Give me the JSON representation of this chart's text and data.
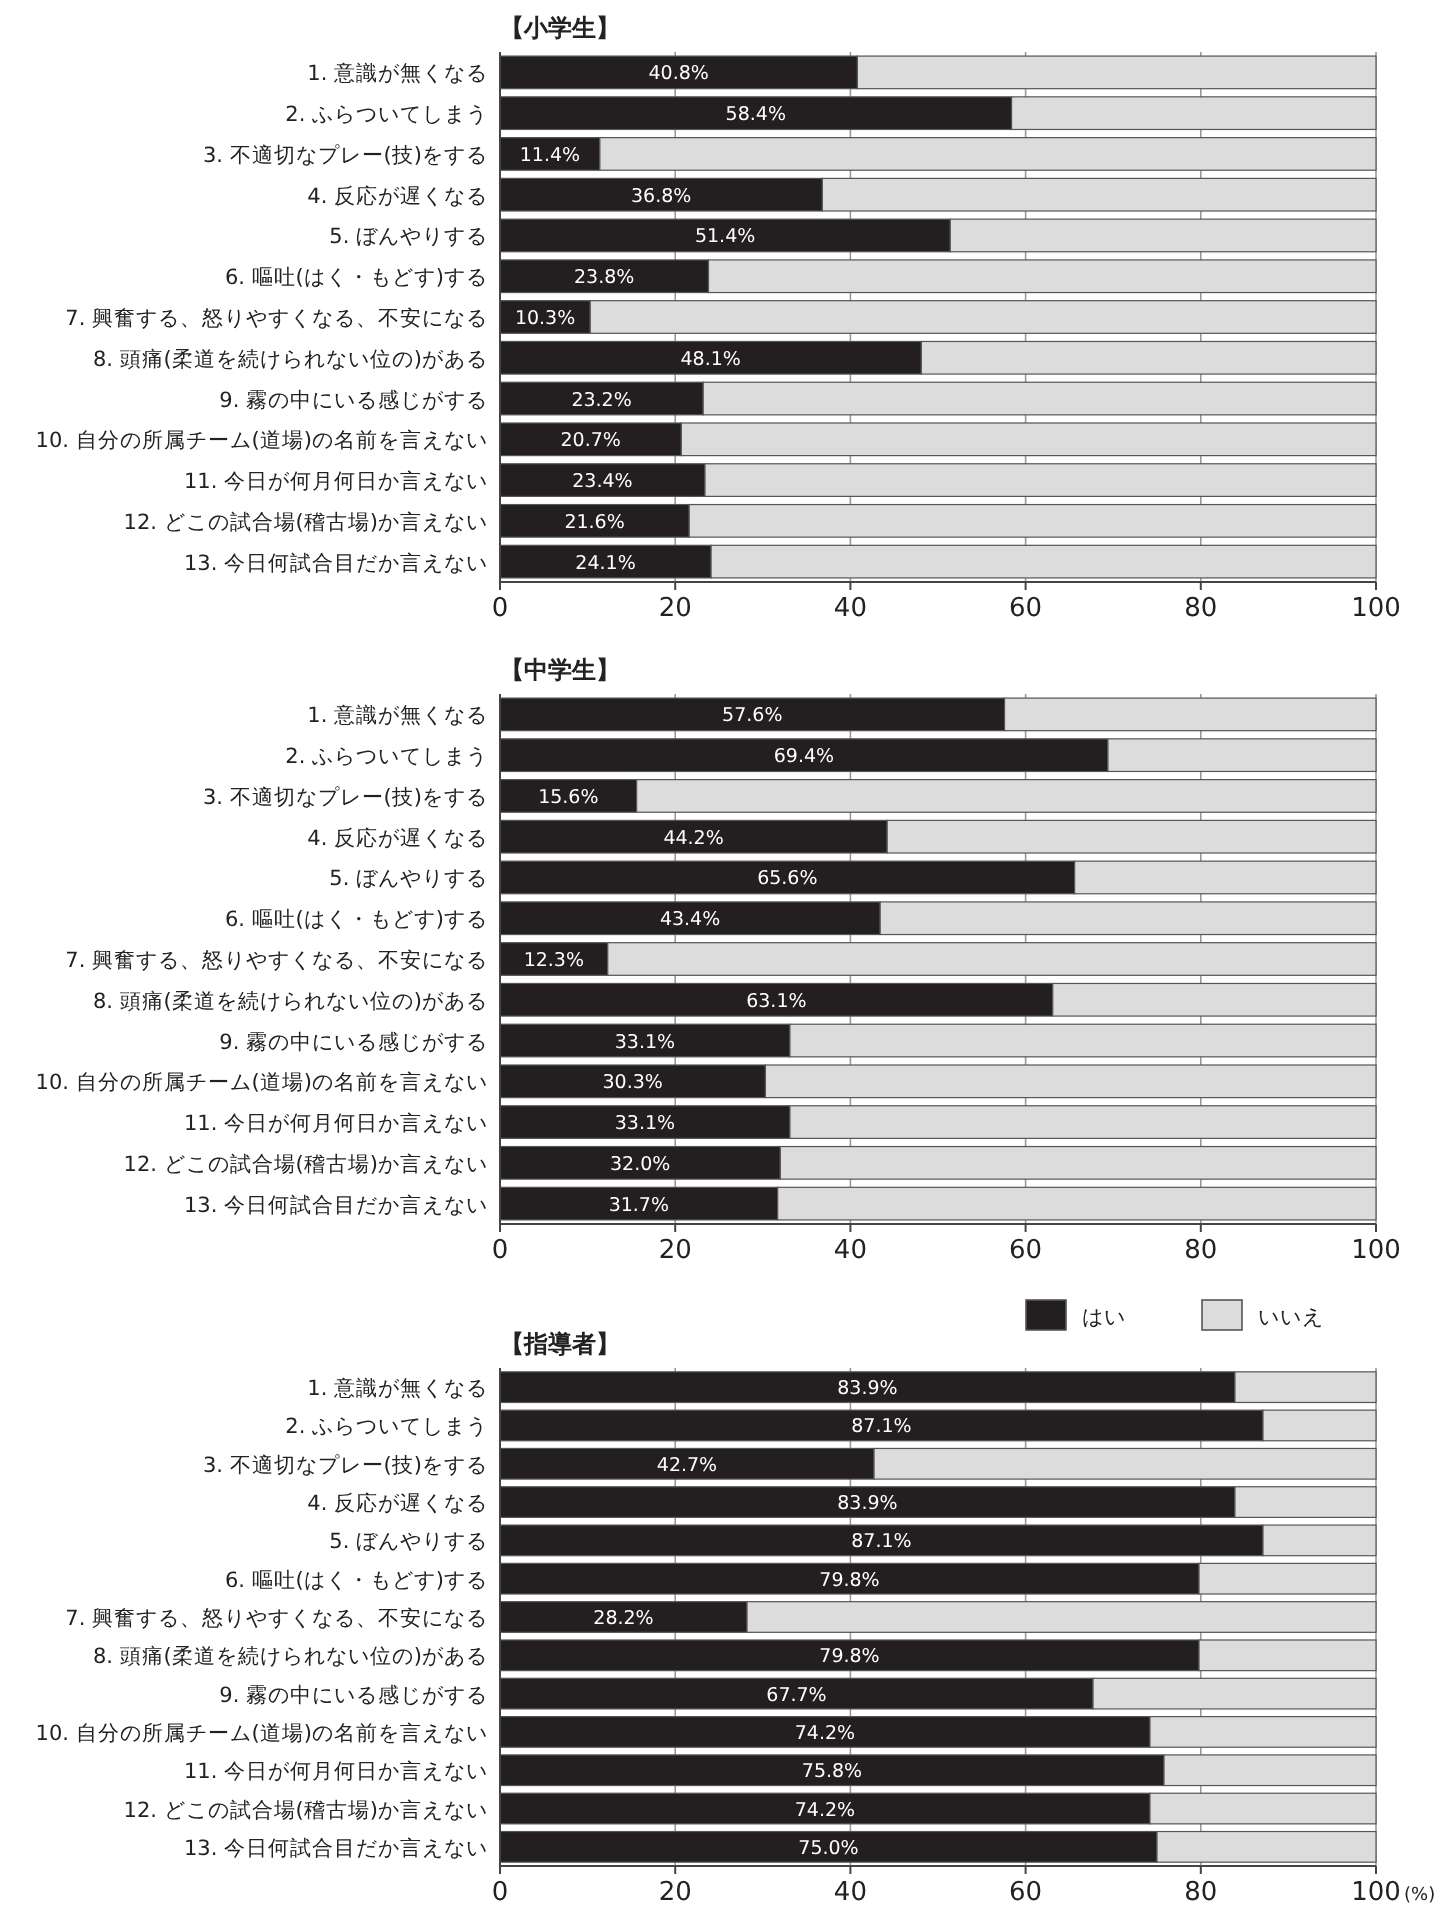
{
  "chart_data": [
    {
      "type": "bar",
      "orientation": "horizontal",
      "stacked": true,
      "title": "【小学生】",
      "categories": [
        "1. 意識が無くなる",
        "2. ふらついてしまう",
        "3. 不適切なプレー(技)をする",
        "4. 反応が遅くなる",
        "5. ぼんやりする",
        "6. 嘔吐(はく・もどす)する",
        "7. 興奮する、怒りやすくなる、不安になる",
        "8. 頭痛(柔道を続けられない位の)がある",
        "9. 霧の中にいる感じがする",
        "10. 自分の所属チーム(道場)の名前を言えない",
        "11. 今日が何月何日か言えない",
        "12. どこの試合場(稽古場)か言えない",
        "13. 今日何試合目だか言えない"
      ],
      "series": [
        {
          "color": "#231f20",
          "values": [
            40.8,
            58.4,
            11.4,
            36.8,
            51.4,
            23.8,
            10.3,
            48.1,
            23.2,
            20.7,
            23.4,
            21.6,
            24.1
          ],
          "value_labels": [
            "40.8%",
            "58.4%",
            "11.4%",
            "36.8%",
            "51.4%",
            "23.8%",
            "10.3%",
            "48.1%",
            "23.2%",
            "20.7%",
            "23.4%",
            "21.6%",
            "24.1%"
          ]
        },
        {
          "color": "#dcdcdc",
          "values": [
            59.2,
            41.6,
            88.6,
            63.2,
            48.6,
            76.2,
            89.7,
            51.9,
            76.8,
            79.3,
            76.6,
            78.4,
            75.9
          ]
        }
      ],
      "xlim": [
        0,
        100
      ],
      "xticks": [
        0,
        20,
        40,
        60,
        80,
        100
      ],
      "grid": "x"
    },
    {
      "type": "bar",
      "orientation": "horizontal",
      "stacked": true,
      "title": "【中学生】",
      "categories": [
        "1. 意識が無くなる",
        "2. ふらついてしまう",
        "3. 不適切なプレー(技)をする",
        "4. 反応が遅くなる",
        "5. ぼんやりする",
        "6. 嘔吐(はく・もどす)する",
        "7. 興奮する、怒りやすくなる、不安になる",
        "8. 頭痛(柔道を続けられない位の)がある",
        "9. 霧の中にいる感じがする",
        "10. 自分の所属チーム(道場)の名前を言えない",
        "11. 今日が何月何日か言えない",
        "12. どこの試合場(稽古場)か言えない",
        "13. 今日何試合目だか言えない"
      ],
      "series": [
        {
          "color": "#231f20",
          "values": [
            57.6,
            69.4,
            15.6,
            44.2,
            65.6,
            43.4,
            12.3,
            63.1,
            33.1,
            30.3,
            33.1,
            32.0,
            31.7
          ],
          "value_labels": [
            "57.6%",
            "69.4%",
            "15.6%",
            "44.2%",
            "65.6%",
            "43.4%",
            "12.3%",
            "63.1%",
            "33.1%",
            "30.3%",
            "33.1%",
            "32.0%",
            "31.7%"
          ]
        },
        {
          "color": "#dcdcdc",
          "values": [
            42.4,
            30.6,
            84.4,
            55.8,
            34.4,
            56.6,
            87.7,
            36.9,
            66.9,
            69.7,
            66.9,
            68.0,
            68.3
          ]
        }
      ],
      "xlim": [
        0,
        100
      ],
      "xticks": [
        0,
        20,
        40,
        60,
        80,
        100
      ],
      "grid": "x"
    },
    {
      "type": "bar",
      "orientation": "horizontal",
      "stacked": true,
      "title": "【指導者】",
      "xlabel": "(%)",
      "categories": [
        "1. 意識が無くなる",
        "2. ふらついてしまう",
        "3. 不適切なプレー(技)をする",
        "4. 反応が遅くなる",
        "5. ぼんやりする",
        "6. 嘔吐(はく・もどす)する",
        "7. 興奮する、怒りやすくなる、不安になる",
        "8. 頭痛(柔道を続けられない位の)がある",
        "9. 霧の中にいる感じがする",
        "10. 自分の所属チーム(道場)の名前を言えない",
        "11. 今日が何月何日か言えない",
        "12. どこの試合場(稽古場)か言えない",
        "13. 今日何試合目だか言えない"
      ],
      "series": [
        {
          "name": "はい",
          "color": "#231f20",
          "values": [
            83.9,
            87.1,
            42.7,
            83.9,
            87.1,
            79.8,
            28.2,
            79.8,
            67.7,
            74.2,
            75.8,
            74.2,
            75.0
          ],
          "value_labels": [
            "83.9%",
            "87.1%",
            "42.7%",
            "83.9%",
            "87.1%",
            "79.8%",
            "28.2%",
            "79.8%",
            "67.7%",
            "74.2%",
            "75.8%",
            "74.2%",
            "75.0%"
          ]
        },
        {
          "name": "いいえ",
          "color": "#dcdcdc",
          "values": [
            16.1,
            12.9,
            57.3,
            16.1,
            12.9,
            20.2,
            71.8,
            20.2,
            32.3,
            25.8,
            24.2,
            25.8,
            25.0
          ]
        }
      ],
      "xlim": [
        0,
        100
      ],
      "xticks": [
        0,
        20,
        40,
        60,
        80,
        100
      ],
      "grid": "x",
      "legend": "top right"
    }
  ]
}
